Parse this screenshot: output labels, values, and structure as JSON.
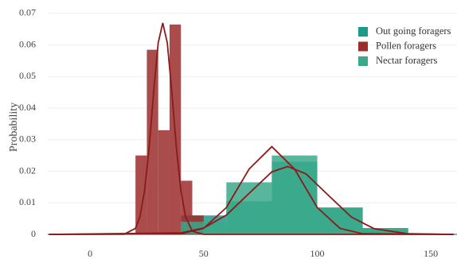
{
  "chart_data": {
    "type": "histogram",
    "y_label": "Probability",
    "xlim": [
      -18.6,
      161.5
    ],
    "xticks": [
      0,
      50,
      100,
      150
    ],
    "ylim": [
      0,
      0.0725
    ],
    "yticks": [
      0,
      0.01,
      0.02,
      0.03,
      0.04,
      0.05,
      0.06,
      0.07
    ],
    "grid": true,
    "legend": "top-right",
    "curve_color": "#8b1a1a",
    "series": [
      {
        "name": "Out going foragers",
        "color": "#1f9a88",
        "bins": [
          40,
          60,
          80,
          100,
          120,
          140
        ],
        "values": [
          0.006,
          0.0105,
          0.023,
          0.0085,
          0.002
        ],
        "kde": {
          "x": [
            -18,
            40,
            50,
            60,
            70,
            80,
            87,
            95,
            105,
            115,
            125,
            140,
            160
          ],
          "values": [
            0,
            0.00047,
            0.002,
            0.0061,
            0.013,
            0.0198,
            0.0215,
            0.0192,
            0.0123,
            0.0055,
            0.0018,
            0.0002,
            0
          ]
        }
      },
      {
        "name": "Pollen foragers",
        "color": "#9b2d2d",
        "bins": [
          20,
          25,
          30,
          35,
          40,
          45,
          50
        ],
        "values": [
          0.025,
          0.0585,
          0.033,
          0.0665,
          0.017,
          0.006
        ],
        "kde": {
          "x": [
            -18,
            15,
            20,
            22,
            24,
            26,
            28,
            30,
            32,
            34,
            36,
            38,
            40,
            42,
            45,
            50,
            160
          ],
          "values": [
            0,
            5e-05,
            0.0019,
            0.0057,
            0.0138,
            0.0275,
            0.0451,
            0.0607,
            0.067,
            0.0607,
            0.0451,
            0.0275,
            0.0138,
            0.0057,
            0.001,
            0,
            0
          ]
        }
      },
      {
        "name": "Nectar foragers",
        "color": "#3aa98a",
        "bins": [
          40,
          60,
          80,
          100,
          120,
          140
        ],
        "values": [
          0.004,
          0.0165,
          0.025,
          0.0085,
          0.002
        ],
        "kde": {
          "x": [
            -18,
            40,
            50,
            60,
            70,
            80,
            90,
            100,
            110,
            120,
            160
          ],
          "values": [
            0,
            0.0002,
            0.0019,
            0.0085,
            0.0207,
            0.0278,
            0.0207,
            0.0085,
            0.0019,
            0.0002,
            0
          ]
        }
      }
    ]
  }
}
